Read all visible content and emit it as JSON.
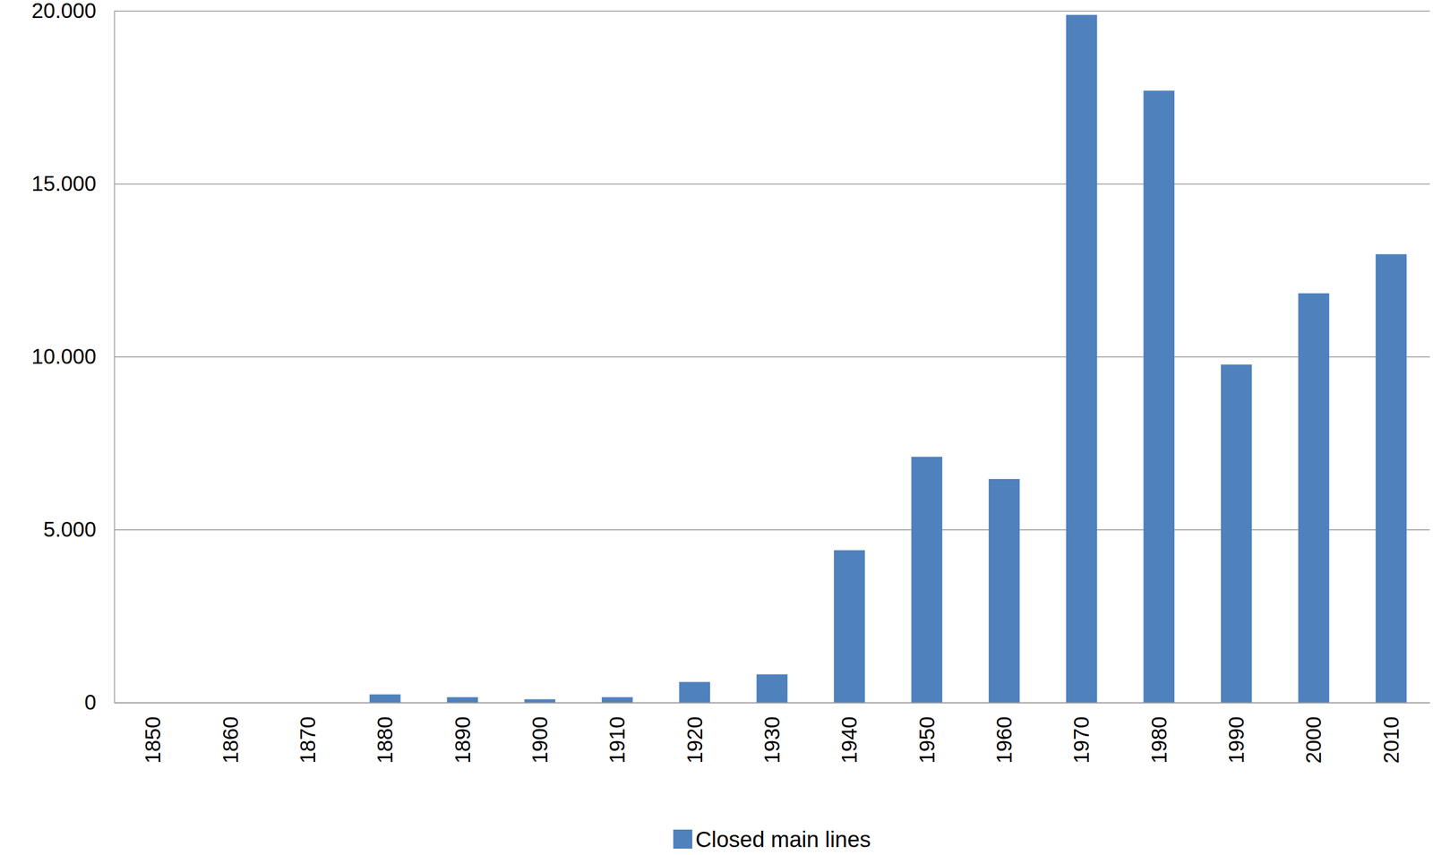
{
  "chart_data": {
    "type": "bar",
    "categories": [
      "1850",
      "1860",
      "1870",
      "1880",
      "1890",
      "1900",
      "1910",
      "1920",
      "1930",
      "1940",
      "1950",
      "1960",
      "1970",
      "1980",
      "1990",
      "2000",
      "2010"
    ],
    "series": [
      {
        "name": "Closed main lines",
        "color": "#4f81bd",
        "values": [
          0,
          0,
          0,
          240,
          160,
          100,
          160,
          600,
          820,
          4410,
          7110,
          6470,
          19890,
          17700,
          9780,
          11840,
          12970
        ]
      }
    ],
    "ylim": [
      0,
      20000
    ],
    "yticks": [
      0,
      {
        "value": 5000,
        "label": "5.000"
      },
      {
        "value": 10000,
        "label": "10.000"
      },
      {
        "value": 15000,
        "label": "15.000"
      },
      {
        "value": 20000,
        "label": "20.000"
      }
    ],
    "grid": true,
    "legend": "bottom"
  }
}
